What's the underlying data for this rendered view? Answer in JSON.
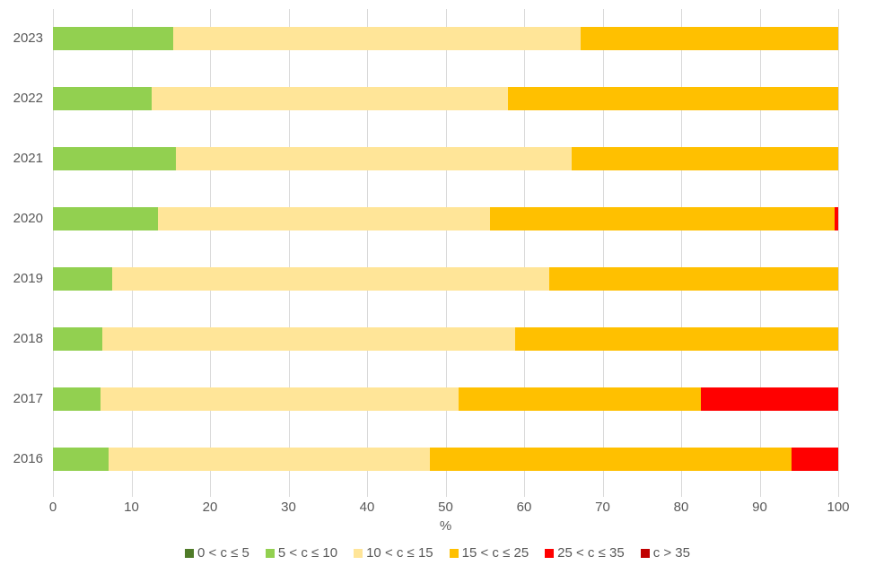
{
  "chart_data": {
    "type": "bar",
    "orientation": "horizontal",
    "stacked": true,
    "title": "",
    "xlabel": "%",
    "ylabel": "",
    "xlim": [
      0,
      100
    ],
    "xticks": [
      0,
      10,
      20,
      30,
      40,
      50,
      60,
      70,
      80,
      90,
      100
    ],
    "grid": "vertical",
    "legend_position": "bottom",
    "categories": [
      "2023",
      "2022",
      "2021",
      "2020",
      "2019",
      "2018",
      "2017",
      "2016"
    ],
    "series": [
      {
        "name": "0 < c ≤ 5",
        "color": "#4f7b28",
        "values": [
          0,
          0,
          0,
          0,
          0,
          0,
          0,
          0
        ]
      },
      {
        "name": "5 < c ≤ 10",
        "color": "#92d050",
        "values": [
          15.3,
          12.6,
          15.7,
          13.4,
          7.5,
          6.3,
          6.1,
          7.1
        ]
      },
      {
        "name": "10 < c ≤ 15",
        "color": "#ffe598",
        "values": [
          51.9,
          45.3,
          50.4,
          42.2,
          55.7,
          52.5,
          45.5,
          40.9
        ]
      },
      {
        "name": "15 < c ≤ 25",
        "color": "#ffc000",
        "values": [
          32.8,
          42.1,
          33.9,
          43.9,
          36.8,
          41.2,
          30.9,
          46.1
        ]
      },
      {
        "name": "25 < c ≤ 35",
        "color": "#ff0000",
        "values": [
          0,
          0,
          0,
          0.5,
          0,
          0,
          17.5,
          5.9
        ]
      },
      {
        "name": "c > 35",
        "color": "#c00000",
        "values": [
          0,
          0,
          0,
          0,
          0,
          0,
          0,
          0
        ]
      }
    ]
  },
  "style": {
    "grid_color": "#d9d9d9",
    "tick_color": "#d9d9d9",
    "text_color": "#595959",
    "background": "#ffffff"
  }
}
